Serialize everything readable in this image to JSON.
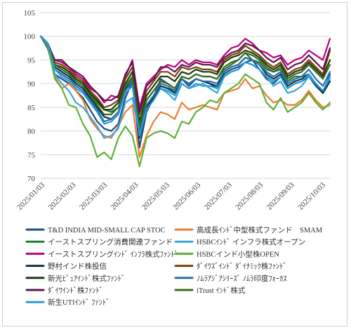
{
  "chart_data": {
    "type": "line",
    "title": "",
    "xlabel": "",
    "ylabel": "",
    "ylim": [
      70,
      105
    ],
    "yticks": [
      70,
      75,
      80,
      85,
      90,
      95,
      100,
      105
    ],
    "grid": true,
    "legend_position": "bottom",
    "x_tick_labels": [
      "2025/01/03",
      "2025/02/03",
      "2025/03/03",
      "2025/04/03",
      "2025/05/03",
      "2025/06/03",
      "2025/07/03",
      "2025/08/03",
      "2025/09/03",
      "2025/10/03"
    ],
    "x": [
      "01/03",
      "01/10",
      "01/17",
      "01/24",
      "01/31",
      "02/07",
      "02/14",
      "02/21",
      "02/28",
      "03/07",
      "03/14",
      "03/21",
      "03/28",
      "04/04",
      "04/11",
      "04/18",
      "04/25",
      "05/02",
      "05/09",
      "05/16",
      "05/23",
      "05/30",
      "06/06",
      "06/13",
      "06/20",
      "06/27",
      "07/04",
      "07/11",
      "07/18",
      "07/25",
      "08/01",
      "08/08",
      "08/15",
      "08/22",
      "08/29",
      "09/05",
      "09/12",
      "09/19",
      "09/26",
      "10/03",
      "10/10",
      "10/17"
    ],
    "series": [
      {
        "name": "T&D INDIA MID-SMALL CAP STOC",
        "color": "#1f4e79",
        "values": [
          100,
          97.5,
          92,
          91,
          90,
          88.5,
          87,
          84.5,
          82,
          80.5,
          80,
          81.5,
          87,
          90.5,
          76.5,
          84,
          87,
          91,
          90,
          89,
          91,
          89.5,
          91,
          90.5,
          90,
          89.5,
          92,
          93,
          93.5,
          94.5,
          95,
          93,
          91,
          90,
          91.5,
          89,
          90,
          90.5,
          91.5,
          89.5,
          88,
          92
        ]
      },
      {
        "name": "高成長ｲﾝﾄﾞ中型株式ファンド　SMAM",
        "color": "#ed7d31",
        "values": [
          100,
          98.5,
          91.5,
          89,
          90,
          88.5,
          86.5,
          82.5,
          80.5,
          79,
          78.5,
          81,
          84,
          85.5,
          74.5,
          79,
          82,
          84,
          83.5,
          82.5,
          86,
          84.5,
          85,
          85.5,
          85,
          84.5,
          88,
          88.5,
          89,
          91,
          89,
          89.5,
          87.5,
          86,
          86.5,
          85.5,
          85.5,
          86.5,
          88.5,
          86.5,
          85,
          85.5
        ]
      },
      {
        "name": "イーストスプリング消費関連ファンド",
        "color": "#1e7b34",
        "values": [
          100,
          98,
          94,
          93.5,
          92.5,
          91,
          90,
          88,
          86,
          84.5,
          84,
          85,
          89.5,
          91,
          80.5,
          86.5,
          88.5,
          89.5,
          89,
          88.5,
          91.5,
          91,
          92,
          91.5,
          91.5,
          91,
          93,
          94,
          95,
          96.5,
          95,
          94.5,
          93,
          92.5,
          93,
          90.5,
          91.5,
          91.5,
          92,
          90,
          88,
          90.5
        ]
      },
      {
        "name": "HSBCｲﾝﾄﾞ インフラ株式オープン",
        "color": "#3aa6dd",
        "values": [
          100,
          98.5,
          92,
          90,
          88.5,
          86,
          85,
          83,
          81,
          78.5,
          79,
          80.5,
          86,
          87,
          79.5,
          85,
          87,
          89,
          88,
          86.5,
          90,
          89,
          89.5,
          90,
          89,
          88,
          91.5,
          92.5,
          93,
          94.5,
          94,
          93,
          91.5,
          89.5,
          90.5,
          88,
          88.5,
          89.5,
          91.5,
          90,
          88.5,
          91
        ]
      },
      {
        "name": "イーストスプリングｲﾝﾄﾞ ｲﾝﾌﾗ株式ﾌｧﾝﾄﾞ",
        "color": "#c00080",
        "values": [
          100,
          98,
          95,
          94.5,
          93.5,
          92,
          91,
          89,
          88,
          86,
          87.5,
          87,
          91.5,
          95,
          85,
          90,
          91.5,
          93,
          94,
          93.5,
          95,
          94,
          95,
          94.5,
          94.5,
          94,
          96,
          97.5,
          98,
          99.5,
          98.5,
          97,
          96.5,
          95.5,
          96,
          94,
          95,
          95.5,
          97,
          96,
          95,
          99.5
        ]
      },
      {
        "name": "HSBCインド小型株OPEN",
        "color": "#5fb138",
        "values": [
          100,
          98,
          91,
          89,
          85.5,
          85,
          81.5,
          79,
          74.5,
          75.5,
          74,
          78.5,
          81,
          79,
          72.5,
          78.5,
          79.5,
          80,
          79.5,
          78.5,
          82,
          81.5,
          84,
          85,
          86.5,
          86,
          88,
          89,
          90,
          92,
          91,
          90,
          86,
          84.5,
          87,
          84,
          85,
          86,
          88,
          86,
          84.5,
          86
        ]
      },
      {
        "name": "野村インド株投信",
        "color": "#0d3349",
        "values": [
          100,
          98.5,
          93.5,
          92.5,
          91.5,
          90,
          89,
          87,
          85,
          83,
          82.5,
          84,
          89,
          90.5,
          78.5,
          85,
          87,
          89.5,
          89,
          88,
          91,
          90,
          91,
          90.5,
          90,
          89,
          92.5,
          93.5,
          94,
          95.5,
          95,
          94,
          92,
          91,
          92,
          89.5,
          90.5,
          91,
          92,
          90,
          88,
          90.5
        ]
      },
      {
        "name": "ﾀﾞｲﾜｽﾞｲﾝﾄﾞ ﾀﾞｲﾅﾐｯｸ株ﾌｧﾝﾄﾞ",
        "color": "#843c0c",
        "values": [
          100,
          98.5,
          94.5,
          94,
          93,
          91.5,
          90.5,
          88.5,
          87,
          85,
          85.5,
          86.5,
          91,
          93.5,
          83.5,
          88.5,
          90.5,
          92.5,
          92.5,
          91.5,
          93.5,
          93,
          93.5,
          93,
          93,
          92.5,
          95,
          96,
          96.5,
          98,
          97,
          96,
          94.5,
          93.5,
          94.5,
          92,
          93,
          93.5,
          95,
          93.5,
          92,
          97
        ]
      },
      {
        "name": "新光ﾋﾟｭｱｲﾝﾄﾞ株式ﾌｧﾝﾄﾞ",
        "color": "#1a3d14",
        "values": [
          100,
          98.5,
          94,
          93.5,
          92.5,
          91,
          90,
          88,
          86.5,
          84.5,
          84.5,
          86,
          90,
          92.5,
          82,
          87.5,
          89.5,
          91.5,
          91.5,
          90.5,
          92.5,
          92,
          93,
          92.5,
          92.5,
          92,
          94.5,
          95.5,
          96,
          97,
          96.5,
          95.5,
          94,
          93,
          94,
          91.5,
          92.5,
          93,
          94.5,
          93,
          91.5,
          95
        ]
      },
      {
        "name": "ﾉﾑﾗｱｼﾞｱｼﾘｰｽﾞ ﾉﾑﾗ印度ﾌｫｰｶｽ",
        "color": "#2c6fae",
        "values": [
          100,
          98.5,
          93,
          92,
          91,
          89.5,
          88.5,
          86.5,
          84.5,
          82,
          82.5,
          84,
          88.5,
          90.5,
          79.5,
          85.5,
          87.5,
          90,
          89.5,
          88.5,
          91,
          90,
          91,
          90.5,
          90.5,
          90,
          92.5,
          93.5,
          94,
          95.5,
          95,
          94,
          92.5,
          91.5,
          92.5,
          90,
          91,
          91.5,
          93,
          91,
          89.5,
          92.5
        ]
      },
      {
        "name": "ﾀﾞｲﾜｲﾝﾄﾞ株ﾌｧﾝﾄﾞ",
        "color": "#5b1a4e",
        "values": [
          100,
          98.5,
          95,
          95,
          93.5,
          92.5,
          91.5,
          89.5,
          88,
          86.5,
          86.5,
          87.5,
          92,
          94.5,
          84,
          89.5,
          91,
          93.5,
          93.5,
          92.5,
          94,
          93.5,
          94.5,
          94,
          94,
          93.5,
          95.5,
          96.5,
          97,
          98.5,
          98,
          97,
          95.5,
          94.5,
          95.5,
          93,
          94,
          94.5,
          96,
          94.5,
          93,
          97.5
        ]
      },
      {
        "name": "iTrust ｲﾝﾄﾞ株式",
        "color": "#3b6b1f",
        "values": [
          100,
          98.5,
          94,
          93,
          92,
          90.5,
          89.5,
          87.5,
          85.5,
          83.5,
          83.5,
          85,
          89.5,
          91.5,
          81,
          86.5,
          88.5,
          90.5,
          90,
          89,
          91.5,
          91,
          92,
          91.5,
          91.5,
          91,
          93.5,
          94.5,
          95,
          96.5,
          96,
          95,
          93.5,
          92.5,
          93.5,
          91,
          92,
          92.5,
          94,
          92.5,
          91,
          94
        ]
      },
      {
        "name": "新生UTIｲﾝﾄﾞ ﾌｧﾝﾄﾞ",
        "color": "#2a9bd6",
        "values": [
          100,
          98.5,
          93,
          91.5,
          90.5,
          89,
          88,
          86,
          84,
          81.5,
          82,
          83.5,
          88,
          89.5,
          79,
          84.5,
          86.5,
          89,
          88.5,
          87.5,
          90,
          89,
          90,
          89.5,
          89.5,
          89,
          91.5,
          92.5,
          93,
          94.5,
          94,
          93,
          91.5,
          90.5,
          91.5,
          89,
          90,
          90.5,
          92,
          90,
          88.5,
          91.5
        ]
      }
    ]
  }
}
